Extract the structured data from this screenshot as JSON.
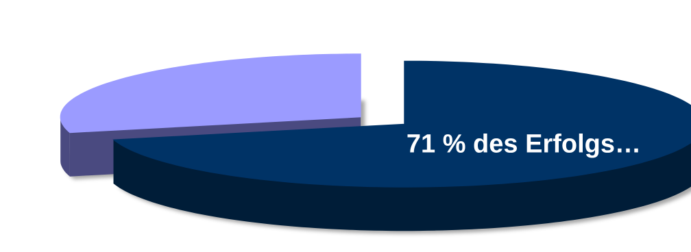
{
  "chart_data": {
    "type": "pie",
    "three_d": true,
    "exploded": true,
    "slices": [
      {
        "value": 71,
        "label": "71 % des Erfolgs…",
        "top_color": "#003366",
        "side_color": "#001d38"
      },
      {
        "value": 29,
        "label": "",
        "top_color": "#9b9bff",
        "side_color": "#4a4a80"
      }
    ],
    "label_color": "#ffffff",
    "shadow": true
  }
}
